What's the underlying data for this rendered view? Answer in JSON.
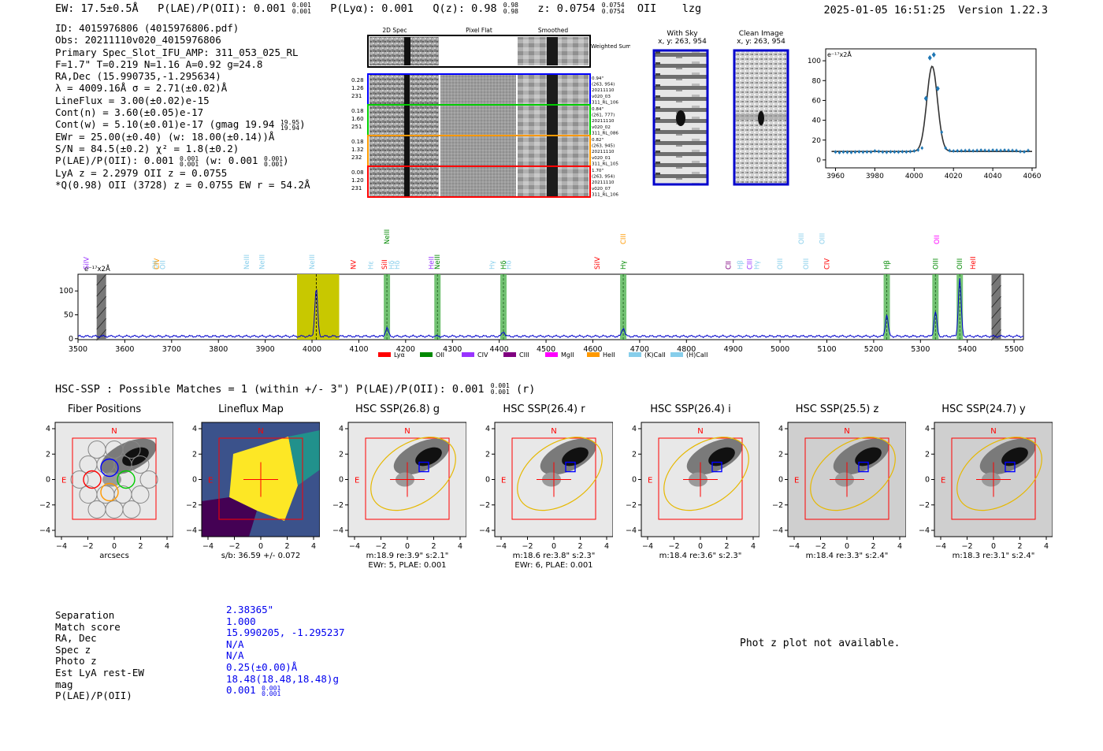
{
  "header": {
    "ew": "EW: 17.5±0.5Å",
    "plae_label": "P(LAE)/P(OII): 0.001",
    "plae_hi": "0.001",
    "plae_lo": "0.001",
    "plya": "P(Lyα): 0.001",
    "qz_label": "Q(z): 0.98",
    "qz_hi": "0.98",
    "qz_lo": "0.98",
    "z_label": "z: 0.0754",
    "z_hi": "0.0754",
    "z_lo": "0.0754",
    "line": "OII",
    "flag": "lzg",
    "timestamp": "2025-01-05 16:51:25",
    "version": "Version 1.22.3"
  },
  "info": {
    "id": "ID: 4015976806 (4015976806.pdf)",
    "obs": "Obs: 20211110v020_4015976806",
    "primary": "Primary Spec_Slot_IFU_AMP: 311_053_025_RL",
    "fta": "F=1.7\"  T=0.219  N=1.16  A=0.92  g=24.8",
    "radec": "RA,Dec (15.990735,-1.295634)",
    "lambda": "λ = 4009.16Å  σ = 2.71(±0.02)Å",
    "lineflux": "LineFlux = 3.00(±0.02)e-15",
    "contn": "Cont(n) = 3.60(±0.05)e-17",
    "contw": "Cont(w) = 5.10(±0.01)e-17 (gmag 19.94",
    "contw_hi": "19.95",
    "contw_lo": "19.94",
    "ewr": "EWr = 25.00(±0.40) (w: 18.00(±0.14))Å",
    "sn": "S/N = 84.5(±0.2)  χ² = 1.8(±0.2)",
    "plae": "P(LAE)/P(OII): 0.001",
    "plae_hi": "0.001",
    "plae_lo": "0.001",
    "plae_w": "(w: 0.001",
    "plae_w_hi": "0.001",
    "plae_w_lo": "0.001",
    "lya": "LyA z = 2.2979  OII z = 0.0755",
    "qline": "*Q(0.98) OII (3728) z = 0.0755  EW r = 54.2Å"
  },
  "cutouts": {
    "col_titles": [
      "2D Spec",
      "Pixel Flat",
      "Smoothed"
    ],
    "weighted_sum": "Weighted Sum",
    "rows": [
      {
        "left": [
          "0.28",
          "1.26",
          "231"
        ],
        "right": [
          "0.94\"",
          "(263, 954)",
          "20211110",
          "v020_03",
          "311_RL_106"
        ],
        "color": "#0000ff"
      },
      {
        "left": [
          "0.18",
          "1.60",
          "251"
        ],
        "right": [
          "0.84\"",
          "(261, 777)",
          "20211110",
          "v020_02",
          "311_RL_086"
        ],
        "color": "#00cc00"
      },
      {
        "left": [
          "0.18",
          "1.32",
          "232"
        ],
        "right": [
          "0.82\"",
          "(263, 945)",
          "20211110",
          "v020_01",
          "311_RL_105"
        ],
        "color": "#ff9900"
      },
      {
        "left": [
          "0.08",
          "1.20",
          "231"
        ],
        "right": [
          "1.70\"",
          "(263, 954)",
          "20211110",
          "v020_07",
          "311_RL_106"
        ],
        "color": "#ff0000"
      }
    ],
    "with_sky_title": "With Sky",
    "with_sky_sub": "x, y: 263, 954",
    "clean_title": "Clean Image",
    "clean_sub": "x, y: 263, 954"
  },
  "fit_plot": {
    "ylabel": "e⁻¹⁷x2Å",
    "xticks": [
      "3960",
      "3980",
      "4000",
      "4020",
      "4040",
      "4060"
    ],
    "yticks": [
      "0",
      "20",
      "40",
      "60",
      "80",
      "100"
    ]
  },
  "chart_data": [
    {
      "type": "scatter",
      "title": "",
      "xlabel": "",
      "ylabel": "e-17 x2Å",
      "xlim": [
        3955,
        4062
      ],
      "ylim": [
        -8,
        112
      ],
      "x": [
        3960,
        3962,
        3964,
        3966,
        3968,
        3970,
        3972,
        3974,
        3976,
        3978,
        3980,
        3982,
        3984,
        3986,
        3988,
        3990,
        3992,
        3994,
        3996,
        3998,
        4000,
        4002,
        4004,
        4006,
        4008,
        4010,
        4012,
        4014,
        4016,
        4018,
        4020,
        4022,
        4024,
        4026,
        4028,
        4030,
        4032,
        4034,
        4036,
        4038,
        4040,
        4042,
        4044,
        4046,
        4048,
        4050,
        4052,
        4054,
        4056,
        4058
      ],
      "y": [
        8,
        7.5,
        8,
        7.8,
        7.6,
        8,
        8.2,
        7.9,
        8.1,
        8,
        9,
        8.5,
        8,
        7.8,
        8.2,
        8.1,
        8,
        8.3,
        8.1,
        8.5,
        9,
        10,
        12,
        62,
        103,
        106,
        72,
        28,
        12,
        9.5,
        9,
        9.2,
        9.3,
        9.4,
        9.6,
        9.2,
        9.5,
        9.8,
        9.6,
        9.4,
        9.8,
        9.7,
        9.5,
        9.8,
        9.6,
        9.5,
        9.4,
        8.5,
        8.2,
        9.5
      ],
      "fit": {
        "center": 4009.16,
        "sigma": 2.71,
        "amplitude": 86,
        "continuum": 8.5
      }
    },
    {
      "type": "line",
      "title": "",
      "xlabel": "",
      "ylabel": "e-17 x2Å",
      "xlim": [
        3500,
        5520
      ],
      "ylim": [
        -2,
        135
      ],
      "xticks": [
        "3500",
        "3600",
        "3700",
        "3800",
        "3900",
        "4000",
        "4100",
        "4200",
        "4300",
        "4400",
        "4500",
        "4600",
        "4700",
        "4800",
        "4900",
        "5000",
        "5100",
        "5200",
        "5300",
        "5400",
        "5500"
      ],
      "yticks": [
        "0",
        "50",
        "100"
      ],
      "baseline": 5,
      "peaks": [
        {
          "x": 4009,
          "amp": 100,
          "w": 3
        },
        {
          "x": 4160,
          "amp": 18,
          "w": 3
        },
        {
          "x": 4409,
          "amp": 10,
          "w": 3
        },
        {
          "x": 4665,
          "amp": 18,
          "w": 3
        },
        {
          "x": 5228,
          "amp": 45,
          "w": 3
        },
        {
          "x": 5332,
          "amp": 52,
          "w": 3
        },
        {
          "x": 5384,
          "amp": 120,
          "w": 3
        }
      ],
      "highlight": {
        "x0": 3968,
        "x1": 4058
      },
      "green_bands": [
        4160,
        4268,
        4409,
        4665,
        5228,
        5332,
        5384
      ],
      "masked": [
        3550,
        5462
      ],
      "line_labels": [
        {
          "name": "SiIV",
          "x": 3518,
          "row": 1,
          "color": "#9933ff"
        },
        {
          "name": "OII",
          "x": 3665,
          "row": 1,
          "color": "#87ceeb"
        },
        {
          "name": "CIV",
          "x": 3668,
          "row": 1,
          "color": "#ff9900"
        },
        {
          "name": "OII",
          "x": 3681,
          "row": 1,
          "color": "#87ceeb"
        },
        {
          "name": "NeIII",
          "x": 3860,
          "row": 1,
          "color": "#87ceeb"
        },
        {
          "name": "NeIII",
          "x": 3893,
          "row": 1,
          "color": "#87ceeb"
        },
        {
          "name": "NeIII",
          "x": 4000,
          "row": 1,
          "color": "#87ceeb"
        },
        {
          "name": "NV",
          "x": 4088,
          "row": 1,
          "color": "#ff0000"
        },
        {
          "name": "Hε",
          "x": 4125,
          "row": 1,
          "color": "#87ceeb"
        },
        {
          "name": "NeIII",
          "x": 4160,
          "row": 0,
          "color": "#008800"
        },
        {
          "name": "SiII",
          "x": 4155,
          "row": 1,
          "color": "#ff0000"
        },
        {
          "name": "Hδ",
          "x": 4170,
          "row": 1,
          "color": "#87ceeb"
        },
        {
          "name": "Hδ",
          "x": 4182,
          "row": 1,
          "color": "#87ceeb"
        },
        {
          "name": "HeII",
          "x": 4255,
          "row": 1,
          "color": "#9933ff"
        },
        {
          "name": "NeIII",
          "x": 4268,
          "row": 1,
          "color": "#008800"
        },
        {
          "name": "Hγ",
          "x": 4385,
          "row": 1,
          "color": "#87ceeb"
        },
        {
          "name": "Hδ",
          "x": 4409,
          "row": 1,
          "color": "#008800"
        },
        {
          "name": "Hδ",
          "x": 4420,
          "row": 1,
          "color": "#87ceeb"
        },
        {
          "name": "SiIV",
          "x": 4609,
          "row": 1,
          "color": "#ff0000"
        },
        {
          "name": "CIII",
          "x": 4665,
          "row": 0,
          "color": "#ff9900"
        },
        {
          "name": "Hγ",
          "x": 4665,
          "row": 1,
          "color": "#008800"
        },
        {
          "name": "CII",
          "x": 4890,
          "row": 1,
          "color": "#800080"
        },
        {
          "name": "Hβ",
          "x": 4915,
          "row": 1,
          "color": "#87ceeb"
        },
        {
          "name": "CIII",
          "x": 4935,
          "row": 1,
          "color": "#9933ff"
        },
        {
          "name": "Hγ",
          "x": 4950,
          "row": 1,
          "color": "#87ceeb"
        },
        {
          "name": "OIII",
          "x": 5000,
          "row": 1,
          "color": "#87ceeb"
        },
        {
          "name": "OIII",
          "x": 5055,
          "row": 1,
          "color": "#87ceeb"
        },
        {
          "name": "OIII",
          "x": 5045,
          "row": 0,
          "color": "#87ceeb"
        },
        {
          "name": "OIII",
          "x": 5090,
          "row": 0,
          "color": "#87ceeb"
        },
        {
          "name": "CIV",
          "x": 5100,
          "row": 1,
          "color": "#ff0000"
        },
        {
          "name": "Hβ",
          "x": 5228,
          "row": 1,
          "color": "#008800"
        },
        {
          "name": "OII",
          "x": 5335,
          "row": 0,
          "color": "#ff00ff"
        },
        {
          "name": "OIII",
          "x": 5332,
          "row": 1,
          "color": "#008800"
        },
        {
          "name": "OIII",
          "x": 5384,
          "row": 1,
          "color": "#008800"
        },
        {
          "name": "HeII",
          "x": 5412,
          "row": 1,
          "color": "#ff0000"
        }
      ],
      "legend": [
        {
          "label": "Lyα",
          "color": "#ff0000"
        },
        {
          "label": "OII",
          "color": "#008800"
        },
        {
          "label": "CIV",
          "color": "#9933ff"
        },
        {
          "label": "CIII",
          "color": "#800080"
        },
        {
          "label": "MgII",
          "color": "#ff00ff"
        },
        {
          "label": "HeII",
          "color": "#ff9900"
        },
        {
          "label": "(K)CaII",
          "color": "#87ceeb"
        },
        {
          "label": "(H)CaII",
          "color": "#87ceeb"
        }
      ]
    }
  ],
  "spectrum": {
    "unit": "e⁻¹⁷x2Å"
  },
  "hsc": {
    "summary": "HSC-SSP : Possible Matches = 1 (within +/- 3\")  P(LAE)/P(OII): 0.001",
    "summary_hi": "0.001",
    "summary_lo": "0.001",
    "summary_band": "(r)",
    "panels": [
      {
        "title": "Fiber Positions",
        "cap1": "arcsecs",
        "cap2": ""
      },
      {
        "title": "Lineflux Map",
        "cap1": "s/b: 36.59 +/- 0.072",
        "cap2": ""
      },
      {
        "title": "HSC SSP(26.8) g",
        "cap1": "m:18.9  re:3.9\"  s:2.1\"",
        "cap2": "EWr: 5, PLAE: 0.001"
      },
      {
        "title": "HSC SSP(26.4) r",
        "cap1": "m:18.6  re:3.8\"  s:2.3\"",
        "cap2": "EWr: 6, PLAE: 0.001"
      },
      {
        "title": "HSC SSP(26.4) i",
        "cap1": "m:18.4  re:3.6\"  s:2.3\"",
        "cap2": ""
      },
      {
        "title": "HSC SSP(25.5) z",
        "cap1": "m:18.4  re:3.3\"  s:2.4\"",
        "cap2": ""
      },
      {
        "title": "HSC SSP(24.7) y",
        "cap1": "m:18.3  re:3.1\"  s:2.4\"",
        "cap2": ""
      }
    ],
    "xticks": [
      "−4",
      "−2",
      "0",
      "2",
      "4"
    ],
    "yticks": [
      "4",
      "2",
      "0",
      "−2",
      "−4"
    ],
    "north": "N",
    "east": "E"
  },
  "match": {
    "labels": [
      "Separation",
      "Match score",
      "RA, Dec",
      "Spec z",
      "Photo z",
      "Est LyA rest-EW",
      "mag",
      "P(LAE)/P(OII)"
    ],
    "values": [
      "2.38365\"",
      "1.000",
      "15.990205, -1.295237",
      "N/A",
      "N/A",
      "0.25(±0.00)Å",
      "18.48(18.48,18.48)g",
      "0.001"
    ],
    "plae_hi": "0.001",
    "plae_lo": "0.001"
  },
  "photz": {
    "message": "Phot z plot not available."
  }
}
